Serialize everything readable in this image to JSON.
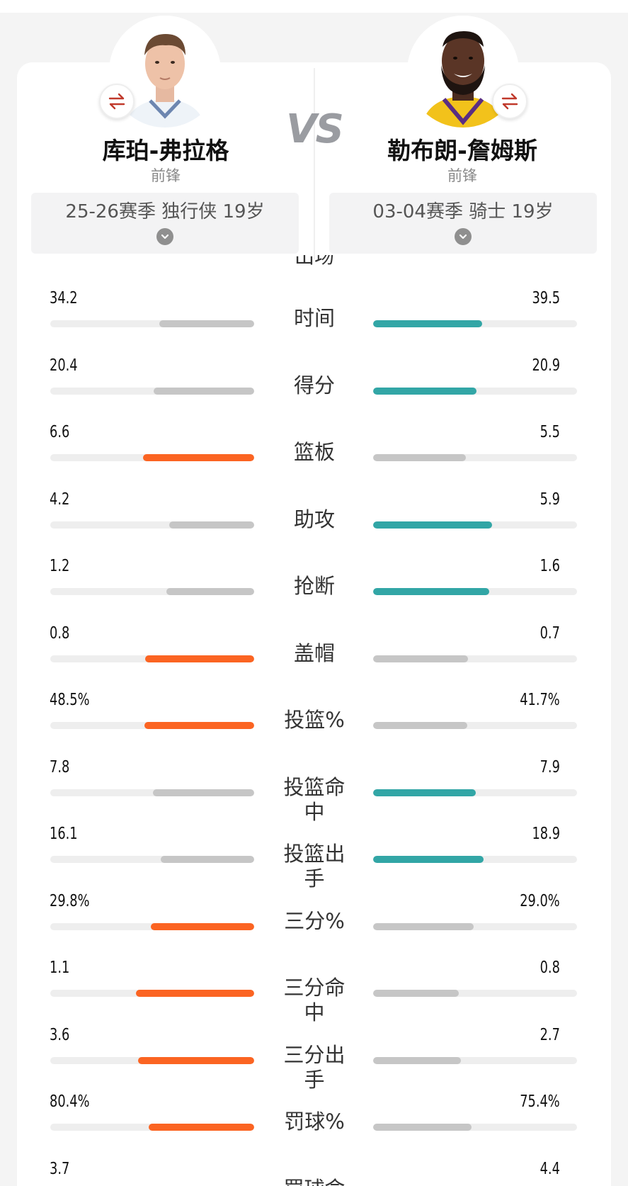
{
  "colors": {
    "win_left": "#fb6422",
    "win_right": "#32a6a6",
    "neutral": "#c6c6c6",
    "track": "#eeeeee"
  },
  "vs_label": "VS",
  "left_player": {
    "name": "库珀-弗拉格",
    "position": "前锋",
    "season_text": "25-26赛季 独行侠 19岁",
    "swap_icon": "swap-arrows-icon"
  },
  "right_player": {
    "name": "勒布朗-詹姆斯",
    "position": "前锋",
    "season_text": "03-04赛季 骑士 19岁",
    "swap_icon": "swap-arrows-icon"
  },
  "clipped_top_label": "出场",
  "stats": [
    {
      "label": "时间",
      "left": "34.2",
      "right": "39.5",
      "winner": "right",
      "left_ratio": 0.464,
      "right_ratio": 0.536
    },
    {
      "label": "得分",
      "left": "20.4",
      "right": "20.9",
      "winner": "right",
      "left_ratio": 0.494,
      "right_ratio": 0.506
    },
    {
      "label": "篮板",
      "left": "6.6",
      "right": "5.5",
      "winner": "left",
      "left_ratio": 0.545,
      "right_ratio": 0.455
    },
    {
      "label": "助攻",
      "left": "4.2",
      "right": "5.9",
      "winner": "right",
      "left_ratio": 0.417,
      "right_ratio": 0.583
    },
    {
      "label": "抢断",
      "left": "1.2",
      "right": "1.6",
      "winner": "right",
      "left_ratio": 0.429,
      "right_ratio": 0.571
    },
    {
      "label": "盖帽",
      "left": "0.8",
      "right": "0.7",
      "winner": "left",
      "left_ratio": 0.533,
      "right_ratio": 0.467
    },
    {
      "label": "投篮%",
      "left": "48.5%",
      "right": "41.7%",
      "winner": "left",
      "left_ratio": 0.538,
      "right_ratio": 0.462
    },
    {
      "label": "投篮命中",
      "left": "7.8",
      "right": "7.9",
      "winner": "right",
      "left_ratio": 0.497,
      "right_ratio": 0.503
    },
    {
      "label": "投篮出手",
      "left": "16.1",
      "right": "18.9",
      "winner": "right",
      "left_ratio": 0.46,
      "right_ratio": 0.54
    },
    {
      "label": "三分%",
      "left": "29.8%",
      "right": "29.0%",
      "winner": "left",
      "left_ratio": 0.507,
      "right_ratio": 0.493
    },
    {
      "label": "三分命中",
      "left": "1.1",
      "right": "0.8",
      "winner": "left",
      "left_ratio": 0.579,
      "right_ratio": 0.421
    },
    {
      "label": "三分出手",
      "left": "3.6",
      "right": "2.7",
      "winner": "left",
      "left_ratio": 0.571,
      "right_ratio": 0.429
    },
    {
      "label": "罚球%",
      "left": "80.4%",
      "right": "75.4%",
      "winner": "left",
      "left_ratio": 0.516,
      "right_ratio": 0.484
    },
    {
      "label": "罚球命中",
      "left": "3.7",
      "right": "4.4",
      "winner": "right",
      "left_ratio": 0.457,
      "right_ratio": 0.543
    }
  ]
}
